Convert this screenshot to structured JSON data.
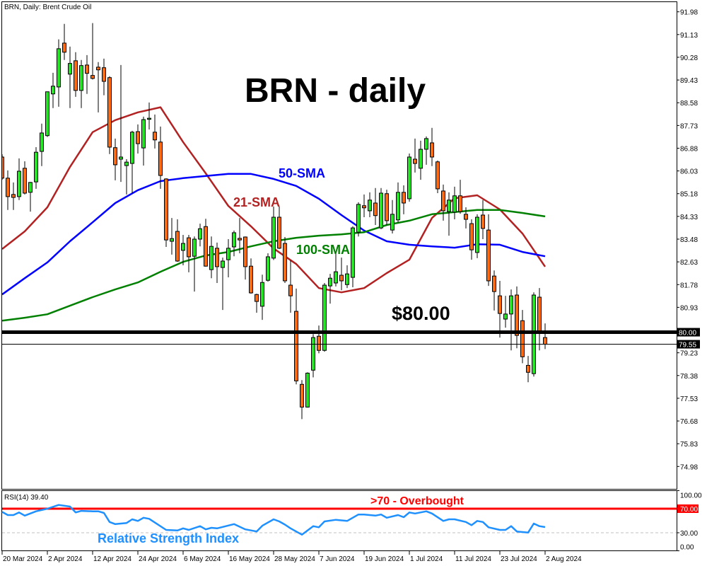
{
  "header": {
    "title": "BRN, Daily:  Brent Crude Oil"
  },
  "annotations": {
    "main_title": "BRN - daily",
    "sma50_label": "50-SMA",
    "sma21_label": "21-SMA",
    "sma100_label": "100-SMA",
    "level_label": "$80.00",
    "overbought_label": ">70 - Overbought",
    "rsi_name_label": "Relative Strength Index"
  },
  "colors": {
    "bull_candle": "#22e622",
    "bear_candle": "#ff6a10",
    "sma21": "#b22222",
    "sma50": "#0000ff",
    "sma100": "#008000",
    "rsi_line": "#1e90ff",
    "overbought_line": "#ff0000",
    "level_line": "#000000"
  },
  "chart_data": [
    {
      "type": "candlestick",
      "title": "BRN, Daily:  Brent Crude Oil",
      "ylim": [
        74.5,
        92.4
      ],
      "y_ticks": [
        "91.98",
        "91.13",
        "90.28",
        "89.43",
        "88.58",
        "87.73",
        "86.88",
        "86.03",
        "85.18",
        "84.33",
        "83.48",
        "82.63",
        "81.78",
        "80.93",
        "80.00",
        "79.55",
        "79.23",
        "78.38",
        "77.53",
        "76.68",
        "75.83",
        "74.98"
      ],
      "x_ticks": [
        "20 Mar 2024",
        "2 Apr 2024",
        "12 Apr 2024",
        "24 Apr 2024",
        "6 May 2024",
        "16 May 2024",
        "28 May 2024",
        "7 Jun 2024",
        "19 Jun 2024",
        "1 Jul 2024",
        "11 Jul 2024",
        "23 Jul 2024",
        "2 Aug 2024"
      ],
      "candle_fields": [
        "date",
        "open",
        "high",
        "low",
        "close"
      ],
      "candles": [
        [
          "2024-03-20",
          86.55,
          86.65,
          85.7,
          85.76
        ],
        [
          "2024-03-21",
          85.76,
          86.05,
          84.57,
          85.07
        ],
        [
          "2024-03-22",
          85.15,
          85.6,
          84.57,
          85.04
        ],
        [
          "2024-03-25",
          85.07,
          86.5,
          84.94,
          86.02
        ],
        [
          "2024-03-26",
          86.13,
          86.39,
          85.15,
          85.2
        ],
        [
          "2024-03-27",
          85.23,
          85.62,
          84.51,
          85.6
        ],
        [
          "2024-03-28",
          85.62,
          86.92,
          85.36,
          86.73
        ],
        [
          "2024-04-01",
          86.76,
          87.8,
          86.21,
          87.45
        ],
        [
          "2024-04-02",
          87.35,
          89.0,
          87.3,
          88.99
        ],
        [
          "2024-04-03",
          88.91,
          89.7,
          88.38,
          89.2
        ],
        [
          "2024-04-04",
          89.17,
          90.95,
          88.43,
          90.6
        ],
        [
          "2024-04-05",
          90.81,
          91.53,
          90.18,
          90.47
        ],
        [
          "2024-04-08",
          89.65,
          90.68,
          88.38,
          90.05
        ],
        [
          "2024-04-09",
          90.15,
          90.47,
          88.8,
          89.04
        ],
        [
          "2024-04-10",
          89.04,
          90.18,
          88.38,
          89.97
        ],
        [
          "2024-04-11",
          89.99,
          90.36,
          88.91,
          89.68
        ],
        [
          "2024-04-12",
          89.6,
          91.56,
          89.45,
          89.49
        ],
        [
          "2024-04-15",
          89.91,
          90.1,
          88.22,
          89.81
        ],
        [
          "2024-04-16",
          89.89,
          90.23,
          88.86,
          89.38
        ],
        [
          "2024-04-17",
          89.52,
          89.57,
          86.66,
          86.92
        ],
        [
          "2024-04-18",
          86.9,
          87.24,
          85.68,
          86.26
        ],
        [
          "2024-04-19",
          86.47,
          89.99,
          85.62,
          86.55
        ],
        [
          "2024-04-22",
          86.23,
          86.47,
          85.15,
          86.36
        ],
        [
          "2024-04-23",
          86.31,
          87.53,
          85.2,
          87.48
        ],
        [
          "2024-04-24",
          87.5,
          87.77,
          86.68,
          87.05
        ],
        [
          "2024-04-25",
          86.89,
          88.06,
          86.23,
          87.95
        ],
        [
          "2024-04-26",
          87.98,
          88.59,
          87.58,
          88.0
        ],
        [
          "2024-04-29",
          87.48,
          88.14,
          86.87,
          87.19
        ],
        [
          "2024-04-30",
          87.11,
          87.69,
          85.36,
          85.86
        ],
        [
          "2024-05-01",
          85.73,
          85.76,
          83.19,
          83.45
        ],
        [
          "2024-05-02",
          83.4,
          84.27,
          82.9,
          83.5
        ],
        [
          "2024-05-03",
          83.77,
          84.22,
          82.63,
          82.66
        ],
        [
          "2024-05-06",
          83.06,
          83.64,
          82.5,
          83.32
        ],
        [
          "2024-05-07",
          83.53,
          83.64,
          82.24,
          82.82
        ],
        [
          "2024-05-08",
          82.84,
          83.58,
          81.52,
          83.48
        ],
        [
          "2024-05-09",
          83.48,
          84.06,
          83.21,
          83.87
        ],
        [
          "2024-05-10",
          83.95,
          84.24,
          82.45,
          82.47
        ],
        [
          "2024-05-13",
          82.34,
          83.58,
          82.02,
          83.21
        ],
        [
          "2024-05-14",
          83.14,
          83.35,
          81.84,
          82.45
        ],
        [
          "2024-05-15",
          82.42,
          82.79,
          80.83,
          82.66
        ],
        [
          "2024-05-16",
          82.71,
          83.48,
          82.05,
          83.14
        ],
        [
          "2024-05-17",
          83.19,
          83.8,
          82.84,
          83.72
        ],
        [
          "2024-05-20",
          83.51,
          84.27,
          82.95,
          83.45
        ],
        [
          "2024-05-21",
          83.56,
          83.58,
          81.97,
          82.45
        ],
        [
          "2024-05-22",
          82.47,
          82.76,
          81.44,
          81.47
        ],
        [
          "2024-05-23",
          81.41,
          81.44,
          80.73,
          81.15
        ],
        [
          "2024-05-24",
          80.97,
          82.15,
          80.46,
          81.86
        ],
        [
          "2024-05-27",
          81.94,
          82.95,
          81.89,
          82.82
        ],
        [
          "2024-05-28",
          82.77,
          84.7,
          82.7,
          84.3
        ],
        [
          "2024-05-29",
          84.3,
          84.7,
          83.11,
          83.14
        ],
        [
          "2024-05-30",
          83.32,
          83.56,
          81.84,
          81.92
        ],
        [
          "2024-05-31",
          81.76,
          82.69,
          80.73,
          81.36
        ],
        [
          "2024-06-03",
          80.78,
          81.63,
          78.05,
          78.18
        ],
        [
          "2024-06-04",
          78.05,
          78.21,
          76.75,
          77.2
        ],
        [
          "2024-06-05",
          77.2,
          78.5,
          77.18,
          78.47
        ],
        [
          "2024-06-06",
          78.58,
          79.93,
          78.31,
          79.8
        ],
        [
          "2024-06-07",
          79.85,
          80.25,
          79.21,
          79.32
        ],
        [
          "2024-06-10",
          79.32,
          81.84,
          79.27,
          81.76
        ],
        [
          "2024-06-11",
          81.73,
          82.18,
          81.07,
          82.02
        ],
        [
          "2024-06-12",
          81.84,
          82.98,
          81.71,
          82.26
        ],
        [
          "2024-06-13",
          82.13,
          82.79,
          81.57,
          81.92
        ],
        [
          "2024-06-14",
          81.78,
          82.5,
          81.65,
          82.18
        ],
        [
          "2024-06-17",
          82.05,
          83.96,
          81.68,
          83.9
        ],
        [
          "2024-06-18",
          83.74,
          84.86,
          83.58,
          84.78
        ],
        [
          "2024-06-19",
          84.73,
          85.15,
          84.3,
          84.65
        ],
        [
          "2024-06-20",
          84.54,
          85.23,
          84.3,
          84.94
        ],
        [
          "2024-06-21",
          84.83,
          85.39,
          84.01,
          84.36
        ],
        [
          "2024-06-24",
          83.9,
          85.39,
          83.85,
          85.2
        ],
        [
          "2024-06-25",
          85.18,
          85.33,
          84.0,
          84.17
        ],
        [
          "2024-06-26",
          83.82,
          84.94,
          83.69,
          84.41
        ],
        [
          "2024-06-27",
          84.2,
          85.6,
          84.1,
          85.23
        ],
        [
          "2024-06-28",
          85.23,
          85.49,
          84.41,
          84.83
        ],
        [
          "2024-07-01",
          84.99,
          86.68,
          84.88,
          86.55
        ],
        [
          "2024-07-02",
          86.47,
          87.24,
          85.97,
          86.31
        ],
        [
          "2024-07-03",
          86.13,
          87.16,
          85.7,
          86.84
        ],
        [
          "2024-07-04",
          86.84,
          87.32,
          86.26,
          87.24
        ],
        [
          "2024-07-05",
          87.08,
          87.64,
          86.21,
          86.55
        ],
        [
          "2024-07-08",
          86.37,
          86.42,
          85.2,
          85.36
        ],
        [
          "2024-07-09",
          85.28,
          85.52,
          84.17,
          84.54
        ],
        [
          "2024-07-10",
          84.51,
          85.23,
          83.61,
          84.94
        ],
        [
          "2024-07-11",
          84.49,
          85.44,
          84.22,
          85.1
        ],
        [
          "2024-07-12",
          85.1,
          85.7,
          84.43,
          84.51
        ],
        [
          "2024-07-15",
          84.41,
          84.67,
          83.88,
          84.22
        ],
        [
          "2024-07-16",
          84.06,
          84.22,
          82.71,
          83.08
        ],
        [
          "2024-07-17",
          82.98,
          84.41,
          82.77,
          84.3
        ],
        [
          "2024-07-18",
          84.38,
          84.94,
          83.48,
          83.88
        ],
        [
          "2024-07-19",
          83.82,
          84.41,
          81.73,
          81.92
        ],
        [
          "2024-07-22",
          82.1,
          82.31,
          80.81,
          81.52
        ],
        [
          "2024-07-23",
          81.36,
          81.92,
          79.8,
          80.7
        ],
        [
          "2024-07-24",
          80.49,
          81.36,
          80.17,
          80.68
        ],
        [
          "2024-07-25",
          80.68,
          81.6,
          79.32,
          81.36
        ],
        [
          "2024-07-26",
          81.39,
          81.71,
          79.4,
          79.88
        ],
        [
          "2024-07-29",
          80.43,
          80.83,
          78.84,
          79.08
        ],
        [
          "2024-07-30",
          78.76,
          79.11,
          78.13,
          78.5
        ],
        [
          "2024-07-31",
          78.45,
          81.49,
          78.34,
          81.39
        ],
        [
          "2024-08-01",
          81.31,
          81.65,
          79.32,
          80.04
        ],
        [
          "2024-08-02",
          79.8,
          80.33,
          79.37,
          79.55
        ]
      ],
      "series": [
        {
          "name": "21-SMA",
          "x": [
            "2024-03-20",
            "2024-03-26",
            "2024-04-02",
            "2024-04-08",
            "2024-04-12",
            "2024-04-18",
            "2024-04-24",
            "2024-04-30",
            "2024-05-06",
            "2024-05-10",
            "2024-05-16",
            "2024-05-22",
            "2024-05-28",
            "2024-06-03",
            "2024-06-07",
            "2024-06-13",
            "2024-06-19",
            "2024-06-25",
            "2024-07-01",
            "2024-07-05",
            "2024-07-11",
            "2024-07-17",
            "2024-07-23",
            "2024-07-29",
            "2024-08-02"
          ],
          "values": [
            83.11,
            83.77,
            84.67,
            86.18,
            87.48,
            87.93,
            88.22,
            88.41,
            87.11,
            85.94,
            84.72,
            83.96,
            83.13,
            82.55,
            81.65,
            81.49,
            81.65,
            82.21,
            82.71,
            84.27,
            85.01,
            85.12,
            84.59,
            83.69,
            82.45
          ]
        },
        {
          "name": "50-SMA",
          "x": [
            "2024-03-20",
            "2024-03-26",
            "2024-04-02",
            "2024-04-08",
            "2024-04-12",
            "2024-04-18",
            "2024-04-24",
            "2024-04-30",
            "2024-05-06",
            "2024-05-10",
            "2024-05-16",
            "2024-05-22",
            "2024-05-28",
            "2024-06-03",
            "2024-06-07",
            "2024-06-13",
            "2024-06-19",
            "2024-06-25",
            "2024-07-01",
            "2024-07-05",
            "2024-07-11",
            "2024-07-17",
            "2024-07-23",
            "2024-07-29",
            "2024-08-02"
          ],
          "values": [
            81.41,
            82.02,
            82.61,
            83.4,
            84.11,
            84.83,
            85.31,
            85.65,
            85.76,
            85.84,
            85.92,
            85.92,
            85.73,
            85.47,
            84.99,
            84.38,
            83.8,
            83.4,
            83.27,
            83.21,
            83.16,
            83.29,
            83.27,
            83.0,
            82.84
          ]
        },
        {
          "name": "100-SMA",
          "x": [
            "2024-03-20",
            "2024-03-26",
            "2024-04-02",
            "2024-04-08",
            "2024-04-12",
            "2024-04-18",
            "2024-04-24",
            "2024-04-30",
            "2024-05-06",
            "2024-05-10",
            "2024-05-16",
            "2024-05-22",
            "2024-05-28",
            "2024-06-03",
            "2024-06-07",
            "2024-06-13",
            "2024-06-19",
            "2024-06-25",
            "2024-07-01",
            "2024-07-05",
            "2024-07-11",
            "2024-07-17",
            "2024-07-23",
            "2024-07-29",
            "2024-08-02"
          ],
          "values": [
            80.43,
            80.54,
            80.67,
            80.99,
            81.31,
            81.6,
            81.86,
            82.26,
            82.63,
            82.87,
            83.0,
            83.21,
            83.4,
            83.53,
            83.61,
            83.66,
            83.74,
            84.01,
            84.17,
            84.41,
            84.49,
            84.57,
            84.57,
            84.46,
            84.33
          ]
        }
      ],
      "horizontal_lines": [
        {
          "label": "80.00",
          "value": 80.0,
          "style": "thick"
        },
        {
          "label": "79.55",
          "value": 79.55,
          "style": "thin"
        }
      ],
      "grid": false
    },
    {
      "type": "line",
      "title": "RSI(14) 39.40",
      "ylim": [
        0,
        100
      ],
      "y_ticks": [
        "100.00",
        "70.00",
        "30.00",
        "0.00"
      ],
      "levels": [
        {
          "label": "70.00",
          "value": 70
        },
        {
          "label": "30.00",
          "value": 30
        }
      ],
      "series": [
        {
          "x": [
            "2024-03-20",
            "2024-03-21",
            "2024-03-22",
            "2024-03-25",
            "2024-03-26",
            "2024-03-28",
            "2024-04-02",
            "2024-04-04",
            "2024-04-08",
            "2024-04-09",
            "2024-04-10",
            "2024-04-12",
            "2024-04-15",
            "2024-04-16",
            "2024-04-17",
            "2024-04-18",
            "2024-04-22",
            "2024-04-23",
            "2024-04-24",
            "2024-04-25",
            "2024-04-26",
            "2024-05-01",
            "2024-05-03",
            "2024-05-06",
            "2024-05-07",
            "2024-05-09",
            "2024-05-10",
            "2024-05-13",
            "2024-05-14",
            "2024-05-17",
            "2024-05-21",
            "2024-05-23",
            "2024-05-24",
            "2024-05-28",
            "2024-05-29",
            "2024-05-30",
            "2024-05-31",
            "2024-06-04",
            "2024-06-06",
            "2024-06-07",
            "2024-06-10",
            "2024-06-12",
            "2024-06-14",
            "2024-06-18",
            "2024-06-19",
            "2024-06-21",
            "2024-06-24",
            "2024-06-25",
            "2024-06-27",
            "2024-06-28",
            "2024-07-01",
            "2024-07-02",
            "2024-07-04",
            "2024-07-05",
            "2024-07-09",
            "2024-07-10",
            "2024-07-11",
            "2024-07-15",
            "2024-07-16",
            "2024-07-17",
            "2024-07-18",
            "2024-07-19",
            "2024-07-23",
            "2024-07-24",
            "2024-07-25",
            "2024-07-26",
            "2024-07-30",
            "2024-07-31",
            "2024-08-01",
            "2024-08-02"
          ],
          "values": [
            64.7,
            59.4,
            59.4,
            63.8,
            58.5,
            65.6,
            70.0,
            76.2,
            73.5,
            63.8,
            66.4,
            65.6,
            65.6,
            62.9,
            47.9,
            44.4,
            46.2,
            52.3,
            49.7,
            55.0,
            53.2,
            34.7,
            33.8,
            37.3,
            34.7,
            40.9,
            35.6,
            38.2,
            37.3,
            44.4,
            35.6,
            32.1,
            41.7,
            52.3,
            48.8,
            43.5,
            37.3,
            26.8,
            40.9,
            39.1,
            48.8,
            51.5,
            49.7,
            60.3,
            60.3,
            58.5,
            60.3,
            55.0,
            59.4,
            55.9,
            63.8,
            62.0,
            65.6,
            62.0,
            49.7,
            52.3,
            52.3,
            47.9,
            42.6,
            49.7,
            47.9,
            39.1,
            34.7,
            34.7,
            40.9,
            32.1,
            30.3,
            45.3,
            40.9,
            39.4
          ]
        }
      ]
    }
  ]
}
